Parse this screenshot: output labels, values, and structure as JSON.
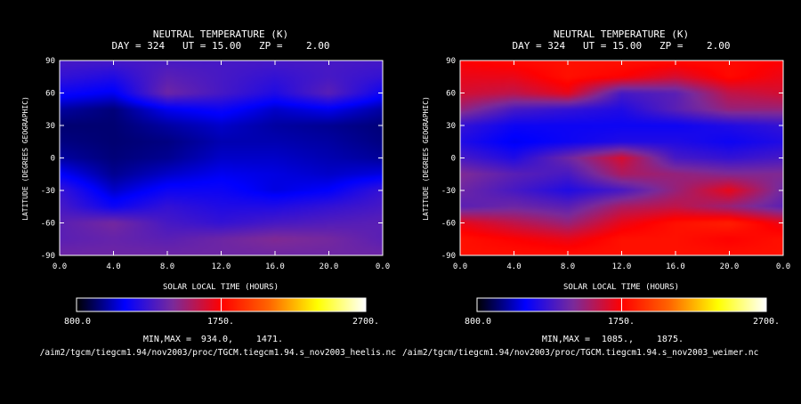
{
  "colors": {
    "background": "#000000",
    "text": "#ffffff",
    "colorbar_stops": [
      "#000000",
      "#0000ff",
      "#7a2a9a",
      "#ff0000",
      "#ff6600",
      "#ffff00",
      "#ffffff"
    ]
  },
  "chart_data": [
    {
      "type": "heatmap",
      "title": "NEUTRAL TEMPERATURE (K)",
      "subtitle": "DAY = 324   UT = 15.00   ZP =    2.00",
      "xlabel": "SOLAR LOCAL TIME (HOURS)",
      "ylabel": "LATITUDE (DEGREES GEOGRAPHIC)",
      "xlim": [
        0,
        24
      ],
      "ylim": [
        -90,
        90
      ],
      "xticks": [
        "0.0",
        "4.0",
        "8.0",
        "12.0",
        "16.0",
        "20.0",
        "0.0"
      ],
      "yticks": [
        "90",
        "60",
        "30",
        "0",
        "-30",
        "-60",
        "-90"
      ],
      "colorbar": {
        "min_label": "800.0",
        "mid_label": "1750.",
        "max_label": "2700.",
        "range": [
          800,
          2700
        ]
      },
      "minmax_label": "MIN,MAX =",
      "min_value": "934.0,",
      "max_value": "1471.",
      "footer_path": "/aim2/tgcm/tiegcm1.94/nov2003/proc/TGCM.tiegcm1.94.s_nov2003_heelis.nc",
      "field": {
        "lat": [
          90,
          75,
          60,
          45,
          30,
          15,
          0,
          -15,
          -30,
          -45,
          -60,
          -75,
          -90
        ],
        "lt": [
          0,
          4,
          8,
          12,
          16,
          20,
          24
        ],
        "values": [
          [
            1300,
            1300,
            1300,
            1300,
            1300,
            1300,
            1300
          ],
          [
            1250,
            1200,
            1350,
            1300,
            1250,
            1300,
            1250
          ],
          [
            1150,
            1100,
            1400,
            1300,
            1200,
            1350,
            1150
          ],
          [
            1000,
            950,
            1100,
            1150,
            1050,
            1100,
            1000
          ],
          [
            940,
            940,
            1000,
            1050,
            1000,
            980,
            950
          ],
          [
            960,
            940,
            960,
            1020,
            1020,
            1000,
            960
          ],
          [
            1000,
            950,
            980,
            1050,
            1050,
            1020,
            990
          ],
          [
            1120,
            980,
            1050,
            1100,
            1080,
            1050,
            1080
          ],
          [
            1260,
            1050,
            1150,
            1150,
            1080,
            1120,
            1260
          ],
          [
            1300,
            1150,
            1250,
            1200,
            1200,
            1250,
            1300
          ],
          [
            1350,
            1420,
            1300,
            1250,
            1300,
            1330,
            1350
          ],
          [
            1350,
            1380,
            1350,
            1400,
            1450,
            1420,
            1350
          ],
          [
            1400,
            1400,
            1400,
            1400,
            1400,
            1400,
            1400
          ]
        ]
      }
    },
    {
      "type": "heatmap",
      "title": "NEUTRAL TEMPERATURE (K)",
      "subtitle": "DAY = 324   UT = 15.00   ZP =    2.00",
      "xlabel": "SOLAR LOCAL TIME (HOURS)",
      "ylabel": "LATITUDE (DEGREES GEOGRAPHIC)",
      "xlim": [
        0,
        24
      ],
      "ylim": [
        -90,
        90
      ],
      "xticks": [
        "0.0",
        "4.0",
        "8.0",
        "12.0",
        "16.0",
        "20.0",
        "0.0"
      ],
      "yticks": [
        "90",
        "60",
        "30",
        "0",
        "-30",
        "-60",
        "-90"
      ],
      "colorbar": {
        "min_label": "800.0",
        "mid_label": "1750.",
        "max_label": "2700.",
        "range": [
          800,
          2700
        ]
      },
      "minmax_label": "MIN,MAX =",
      "min_value": "1085.,",
      "max_value": "1875.",
      "footer_path": "/aim2/tgcm/tiegcm1.94/nov2003/proc/TGCM.tiegcm1.94.s_nov2003_weimer.nc",
      "field": {
        "lat": [
          90,
          75,
          60,
          45,
          30,
          15,
          0,
          -15,
          -30,
          -45,
          -60,
          -75,
          -90
        ],
        "lt": [
          0,
          4,
          8,
          12,
          16,
          20,
          24
        ],
        "values": [
          [
            1750,
            1780,
            1800,
            1800,
            1790,
            1780,
            1750
          ],
          [
            1700,
            1700,
            1800,
            1750,
            1650,
            1780,
            1700
          ],
          [
            1650,
            1600,
            1700,
            1300,
            1350,
            1600,
            1650
          ],
          [
            1500,
            1300,
            1250,
            1200,
            1350,
            1500,
            1500
          ],
          [
            1250,
            1150,
            1150,
            1150,
            1150,
            1200,
            1250
          ],
          [
            1200,
            1100,
            1150,
            1200,
            1200,
            1150,
            1200
          ],
          [
            1300,
            1200,
            1400,
            1650,
            1300,
            1250,
            1300
          ],
          [
            1450,
            1350,
            1300,
            1550,
            1500,
            1450,
            1450
          ],
          [
            1400,
            1300,
            1200,
            1300,
            1500,
            1700,
            1400
          ],
          [
            1350,
            1400,
            1350,
            1550,
            1600,
            1500,
            1350
          ],
          [
            1700,
            1600,
            1500,
            1700,
            1800,
            1850,
            1700
          ],
          [
            1800,
            1750,
            1700,
            1800,
            1800,
            1750,
            1800
          ],
          [
            1800,
            1800,
            1800,
            1800,
            1800,
            1800,
            1800
          ]
        ]
      }
    }
  ]
}
